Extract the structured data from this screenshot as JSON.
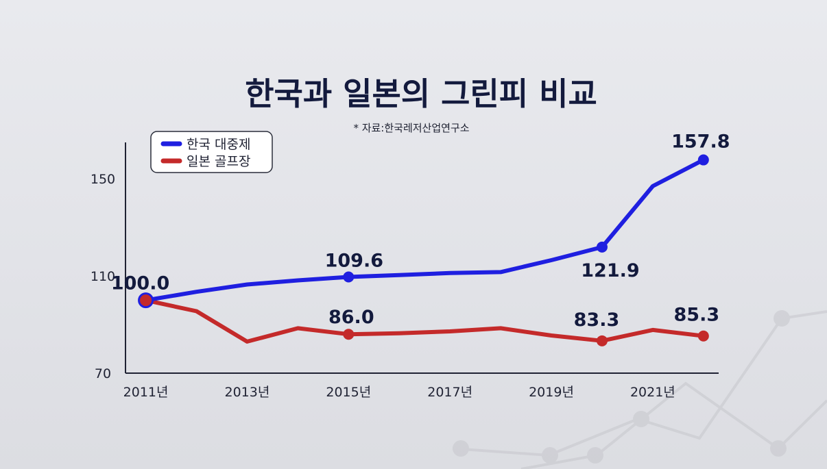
{
  "chart_data": {
    "type": "line",
    "title": "한국과 일본의 그린피 비교",
    "source": "* 자료:한국레저산업연구소",
    "x": [
      2011,
      2012,
      2013,
      2014,
      2015,
      2016,
      2017,
      2018,
      2019,
      2020,
      2021,
      2022
    ],
    "xticks": [
      {
        "value": 2011,
        "label": "2011년"
      },
      {
        "value": 2013,
        "label": "2013년"
      },
      {
        "value": 2015,
        "label": "2015년"
      },
      {
        "value": 2017,
        "label": "2017년"
      },
      {
        "value": 2019,
        "label": "2019년"
      },
      {
        "value": 2021,
        "label": "2021년"
      }
    ],
    "yticks": [
      {
        "value": 70,
        "label": "70"
      },
      {
        "value": 110,
        "label": "110"
      },
      {
        "value": 150,
        "label": "150"
      }
    ],
    "ylim": [
      70,
      165
    ],
    "xlim": [
      2010.6,
      2022.3
    ],
    "legend_position": "top-left",
    "series": [
      {
        "name": "한국 대중제",
        "color": "#1f1fe0",
        "values": [
          100.0,
          103.5,
          106.5,
          108.2,
          109.6,
          110.4,
          111.2,
          111.6,
          116.5,
          121.9,
          147.0,
          157.8
        ],
        "markers": [
          0,
          4,
          9,
          11
        ],
        "labels": [
          {
            "index": 0,
            "text": "100.0"
          },
          {
            "index": 4,
            "text": "109.6"
          },
          {
            "index": 9,
            "text": "121.9"
          },
          {
            "index": 11,
            "text": "157.8"
          }
        ]
      },
      {
        "name": "일본 골프장",
        "color": "#c42a2a",
        "values": [
          100.0,
          95.5,
          83.0,
          88.5,
          86.0,
          86.4,
          87.2,
          88.5,
          85.5,
          83.3,
          87.8,
          85.3
        ],
        "markers": [
          0,
          4,
          9,
          11
        ],
        "labels": [
          {
            "index": 4,
            "text": "86.0"
          },
          {
            "index": 9,
            "text": "83.3"
          },
          {
            "index": 11,
            "text": "85.3"
          }
        ]
      }
    ],
    "grid": false
  }
}
